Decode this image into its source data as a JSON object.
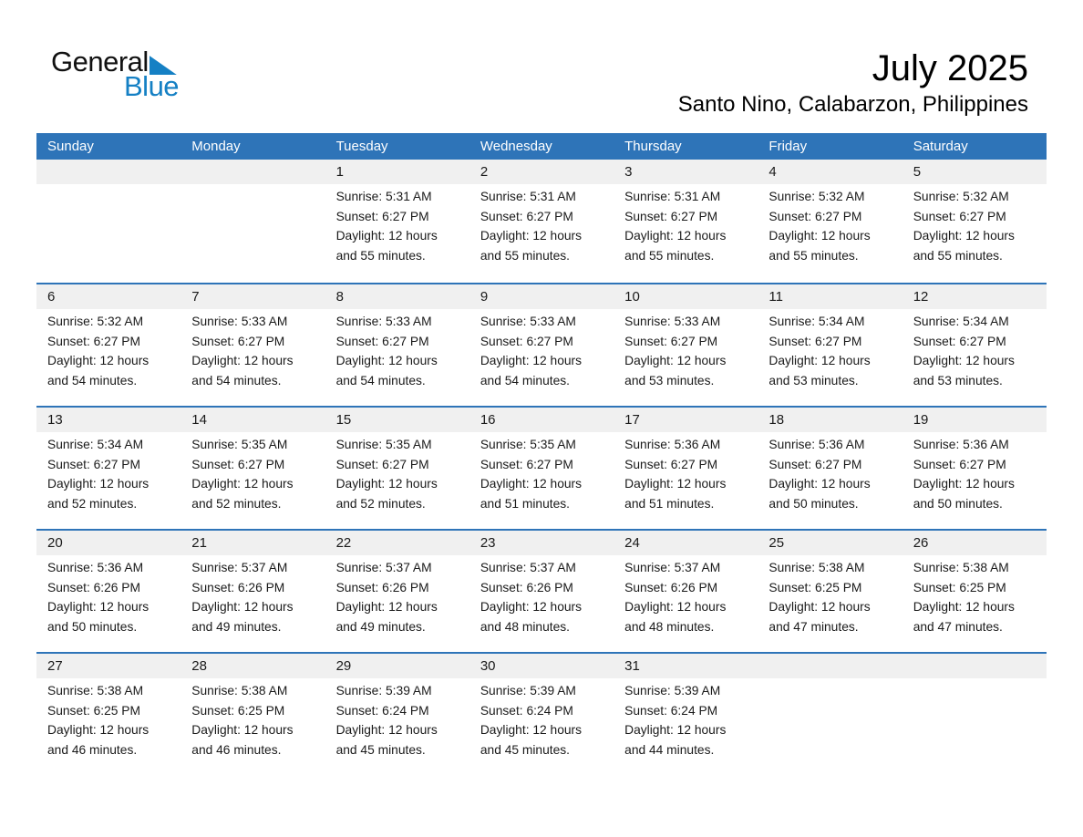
{
  "logo": {
    "general": "General",
    "blue": "Blue"
  },
  "header": {
    "title": "July 2025",
    "subtitle": "Santo Nino, Calabarzon, Philippines"
  },
  "colors": {
    "header_blue": "#2e74b8",
    "logo_blue": "#1580c4",
    "number_band_gray": "#f0f0f0",
    "text": "#1a1a1a"
  },
  "calendar": {
    "day_headers": [
      "Sunday",
      "Monday",
      "Tuesday",
      "Wednesday",
      "Thursday",
      "Friday",
      "Saturday"
    ],
    "weeks": [
      {
        "days": [
          null,
          null,
          {
            "date": "1",
            "sunrise": "Sunrise: 5:31 AM",
            "sunset": "Sunset: 6:27 PM",
            "daylight": "Daylight: 12 hours and 55 minutes."
          },
          {
            "date": "2",
            "sunrise": "Sunrise: 5:31 AM",
            "sunset": "Sunset: 6:27 PM",
            "daylight": "Daylight: 12 hours and 55 minutes."
          },
          {
            "date": "3",
            "sunrise": "Sunrise: 5:31 AM",
            "sunset": "Sunset: 6:27 PM",
            "daylight": "Daylight: 12 hours and 55 minutes."
          },
          {
            "date": "4",
            "sunrise": "Sunrise: 5:32 AM",
            "sunset": "Sunset: 6:27 PM",
            "daylight": "Daylight: 12 hours and 55 minutes."
          },
          {
            "date": "5",
            "sunrise": "Sunrise: 5:32 AM",
            "sunset": "Sunset: 6:27 PM",
            "daylight": "Daylight: 12 hours and 55 minutes."
          }
        ]
      },
      {
        "days": [
          {
            "date": "6",
            "sunrise": "Sunrise: 5:32 AM",
            "sunset": "Sunset: 6:27 PM",
            "daylight": "Daylight: 12 hours and 54 minutes."
          },
          {
            "date": "7",
            "sunrise": "Sunrise: 5:33 AM",
            "sunset": "Sunset: 6:27 PM",
            "daylight": "Daylight: 12 hours and 54 minutes."
          },
          {
            "date": "8",
            "sunrise": "Sunrise: 5:33 AM",
            "sunset": "Sunset: 6:27 PM",
            "daylight": "Daylight: 12 hours and 54 minutes."
          },
          {
            "date": "9",
            "sunrise": "Sunrise: 5:33 AM",
            "sunset": "Sunset: 6:27 PM",
            "daylight": "Daylight: 12 hours and 54 minutes."
          },
          {
            "date": "10",
            "sunrise": "Sunrise: 5:33 AM",
            "sunset": "Sunset: 6:27 PM",
            "daylight": "Daylight: 12 hours and 53 minutes."
          },
          {
            "date": "11",
            "sunrise": "Sunrise: 5:34 AM",
            "sunset": "Sunset: 6:27 PM",
            "daylight": "Daylight: 12 hours and 53 minutes."
          },
          {
            "date": "12",
            "sunrise": "Sunrise: 5:34 AM",
            "sunset": "Sunset: 6:27 PM",
            "daylight": "Daylight: 12 hours and 53 minutes."
          }
        ]
      },
      {
        "days": [
          {
            "date": "13",
            "sunrise": "Sunrise: 5:34 AM",
            "sunset": "Sunset: 6:27 PM",
            "daylight": "Daylight: 12 hours and 52 minutes."
          },
          {
            "date": "14",
            "sunrise": "Sunrise: 5:35 AM",
            "sunset": "Sunset: 6:27 PM",
            "daylight": "Daylight: 12 hours and 52 minutes."
          },
          {
            "date": "15",
            "sunrise": "Sunrise: 5:35 AM",
            "sunset": "Sunset: 6:27 PM",
            "daylight": "Daylight: 12 hours and 52 minutes."
          },
          {
            "date": "16",
            "sunrise": "Sunrise: 5:35 AM",
            "sunset": "Sunset: 6:27 PM",
            "daylight": "Daylight: 12 hours and 51 minutes."
          },
          {
            "date": "17",
            "sunrise": "Sunrise: 5:36 AM",
            "sunset": "Sunset: 6:27 PM",
            "daylight": "Daylight: 12 hours and 51 minutes."
          },
          {
            "date": "18",
            "sunrise": "Sunrise: 5:36 AM",
            "sunset": "Sunset: 6:27 PM",
            "daylight": "Daylight: 12 hours and 50 minutes."
          },
          {
            "date": "19",
            "sunrise": "Sunrise: 5:36 AM",
            "sunset": "Sunset: 6:27 PM",
            "daylight": "Daylight: 12 hours and 50 minutes."
          }
        ]
      },
      {
        "days": [
          {
            "date": "20",
            "sunrise": "Sunrise: 5:36 AM",
            "sunset": "Sunset: 6:26 PM",
            "daylight": "Daylight: 12 hours and 50 minutes."
          },
          {
            "date": "21",
            "sunrise": "Sunrise: 5:37 AM",
            "sunset": "Sunset: 6:26 PM",
            "daylight": "Daylight: 12 hours and 49 minutes."
          },
          {
            "date": "22",
            "sunrise": "Sunrise: 5:37 AM",
            "sunset": "Sunset: 6:26 PM",
            "daylight": "Daylight: 12 hours and 49 minutes."
          },
          {
            "date": "23",
            "sunrise": "Sunrise: 5:37 AM",
            "sunset": "Sunset: 6:26 PM",
            "daylight": "Daylight: 12 hours and 48 minutes."
          },
          {
            "date": "24",
            "sunrise": "Sunrise: 5:37 AM",
            "sunset": "Sunset: 6:26 PM",
            "daylight": "Daylight: 12 hours and 48 minutes."
          },
          {
            "date": "25",
            "sunrise": "Sunrise: 5:38 AM",
            "sunset": "Sunset: 6:25 PM",
            "daylight": "Daylight: 12 hours and 47 minutes."
          },
          {
            "date": "26",
            "sunrise": "Sunrise: 5:38 AM",
            "sunset": "Sunset: 6:25 PM",
            "daylight": "Daylight: 12 hours and 47 minutes."
          }
        ]
      },
      {
        "days": [
          {
            "date": "27",
            "sunrise": "Sunrise: 5:38 AM",
            "sunset": "Sunset: 6:25 PM",
            "daylight": "Daylight: 12 hours and 46 minutes."
          },
          {
            "date": "28",
            "sunrise": "Sunrise: 5:38 AM",
            "sunset": "Sunset: 6:25 PM",
            "daylight": "Daylight: 12 hours and 46 minutes."
          },
          {
            "date": "29",
            "sunrise": "Sunrise: 5:39 AM",
            "sunset": "Sunset: 6:24 PM",
            "daylight": "Daylight: 12 hours and 45 minutes."
          },
          {
            "date": "30",
            "sunrise": "Sunrise: 5:39 AM",
            "sunset": "Sunset: 6:24 PM",
            "daylight": "Daylight: 12 hours and 45 minutes."
          },
          {
            "date": "31",
            "sunrise": "Sunrise: 5:39 AM",
            "sunset": "Sunset: 6:24 PM",
            "daylight": "Daylight: 12 hours and 44 minutes."
          },
          null,
          null
        ]
      }
    ]
  }
}
